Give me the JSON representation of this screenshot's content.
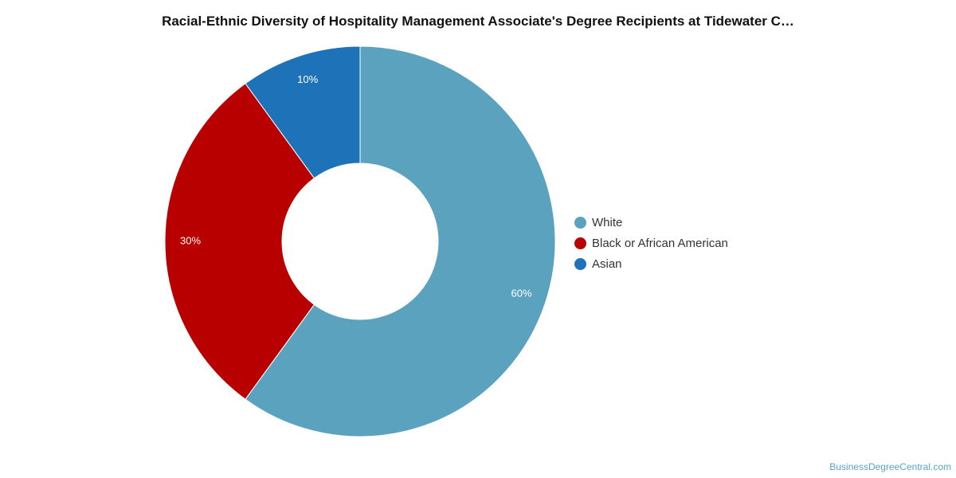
{
  "chart_data": {
    "type": "pie",
    "title": "Racial-Ethnic Diversity of Hospitality Management Associate's Degree Recipients at Tidewater C…",
    "donut": true,
    "slices": [
      {
        "label": "White",
        "value": 60,
        "display": "60%",
        "color": "#5ba2bf"
      },
      {
        "label": "Black or African American",
        "value": 30,
        "display": "30%",
        "color": "#b90000"
      },
      {
        "label": "Asian",
        "value": 10,
        "display": "10%",
        "color": "#1e73b8"
      }
    ],
    "legend_position": "right"
  },
  "watermark": "BusinessDegreeCentral.com"
}
